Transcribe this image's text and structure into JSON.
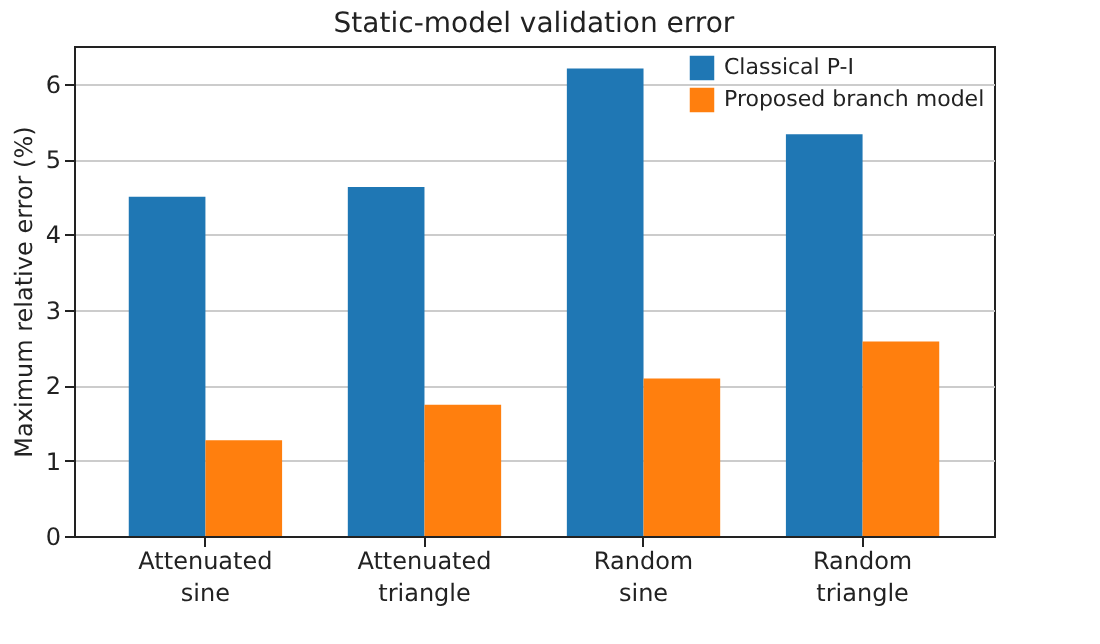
{
  "chart_data": {
    "type": "bar",
    "title": "Static-model validation error",
    "ylabel": "Maximum relative error (%)",
    "categories": [
      "Attenuated\nsine",
      "Attenuated\ntriangle",
      "Random\nsine",
      "Random\ntriangle"
    ],
    "series": [
      {
        "name": "Classical P-I",
        "color": "#1f77b4",
        "values": [
          4.5,
          4.63,
          6.2,
          5.33
        ]
      },
      {
        "name": "Proposed branch model",
        "color": "#ff7f0e",
        "values": [
          1.27,
          1.74,
          2.09,
          2.58
        ]
      }
    ],
    "ylim": [
      0,
      6.5
    ],
    "yticks": [
      0,
      1,
      2,
      3,
      4,
      5,
      6
    ],
    "grid": "y",
    "legend": "top right"
  }
}
